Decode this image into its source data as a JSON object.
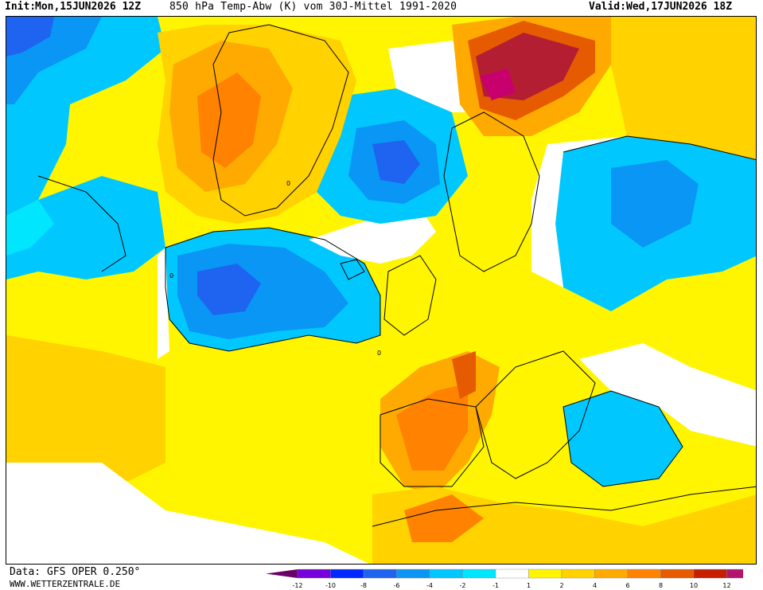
{
  "header": {
    "init_label": "Init:",
    "init_value": "Mon,15JUN2026 12Z",
    "title": "850 hPa Temp-Abw (K) vom 30J-Mittel 1991-2020",
    "valid_label": "Valid:",
    "valid_value": "Wed,17JUN2026 18Z"
  },
  "footer": {
    "data_source": "Data: GFS OPER 0.250°",
    "website": "WWW.WETTERZENTRALE.DE"
  },
  "legend": {
    "ticks": [
      "-12",
      "-10",
      "-8",
      "-6",
      "-4",
      "-2",
      "-1",
      "1",
      "2",
      "4",
      "6",
      "8",
      "10",
      "12"
    ],
    "colors": [
      "#c800c8",
      "#7800dc",
      "#0028ff",
      "#1e64f0",
      "#0a96f5",
      "#00c8ff",
      "#00e6ff",
      "#ffffff",
      "#fff500",
      "#ffd200",
      "#ffaa00",
      "#ff8200",
      "#e65a00",
      "#c81e00",
      "#b4146e",
      "#e0007a"
    ]
  },
  "map": {
    "contour_label": "0",
    "colors": {
      "neutral": "#ffffff",
      "cold_1": "#00e6ff",
      "cold_2": "#00c8ff",
      "cold_3": "#0a96f5",
      "cold_4": "#1e64f0",
      "warm_1": "#fff500",
      "warm_2": "#ffd200",
      "warm_3": "#ffaa00",
      "warm_4": "#ff8200",
      "warm_5": "#e65a00",
      "warm_6": "#b41e32",
      "warm_7": "#c8006e"
    }
  }
}
